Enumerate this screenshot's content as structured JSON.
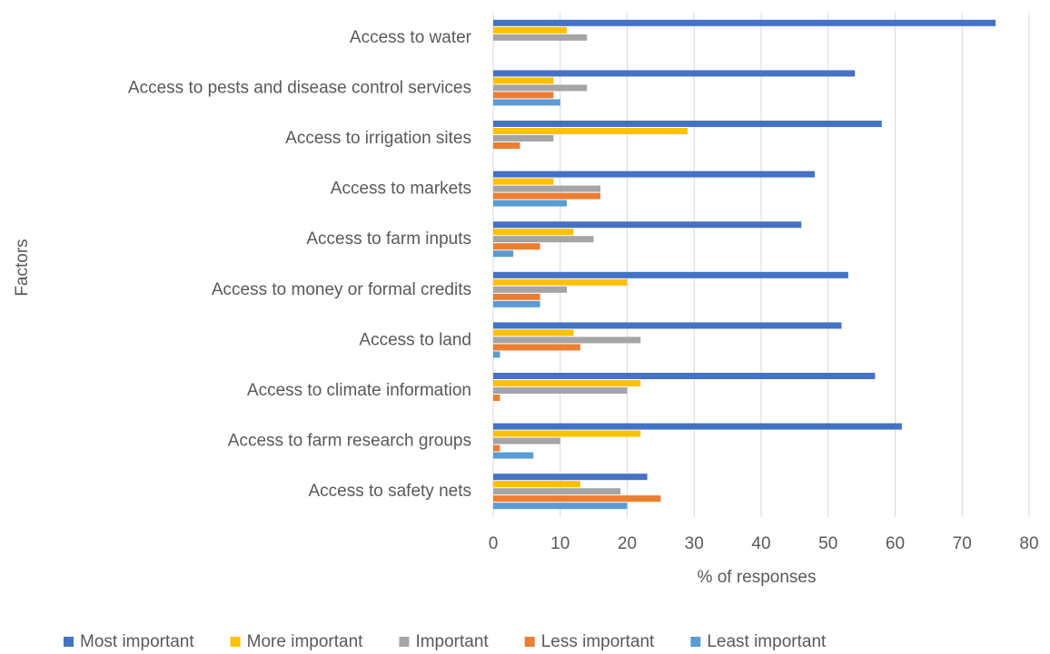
{
  "chart_data": {
    "type": "hbar",
    "x_label": "% of responses",
    "y_label": "Factors",
    "categories": [
      "Access to water",
      "Access to pests and disease control services",
      "Access to irrigation sites",
      "Access to markets",
      "Access to farm inputs",
      "Access to money or formal credits",
      "Access to land",
      "Access to climate information",
      "Access to farm research groups",
      "Access to safety nets"
    ],
    "series": [
      {
        "name": "Most important",
        "color": "#4472c4",
        "values": [
          75,
          54,
          58,
          48,
          46,
          53,
          52,
          57,
          61,
          23
        ]
      },
      {
        "name": "More important",
        "color": "#ffc000",
        "values": [
          11,
          9,
          29,
          9,
          12,
          20,
          12,
          22,
          22,
          13
        ]
      },
      {
        "name": "Important",
        "color": "#a5a5a5",
        "values": [
          14,
          14,
          9,
          16,
          15,
          11,
          22,
          20,
          10,
          19
        ]
      },
      {
        "name": "Less important",
        "color": "#ed7d31",
        "values": [
          0,
          9,
          4,
          16,
          7,
          7,
          13,
          1,
          1,
          25
        ]
      },
      {
        "name": "Least important",
        "color": "#5b9bd5",
        "values": [
          0,
          10,
          0,
          11,
          3,
          7,
          1,
          0,
          6,
          20
        ]
      }
    ],
    "xlim": [
      0,
      80
    ],
    "xticks": [
      0,
      10,
      20,
      30,
      40,
      50,
      60,
      70,
      80
    ],
    "grid": true
  }
}
